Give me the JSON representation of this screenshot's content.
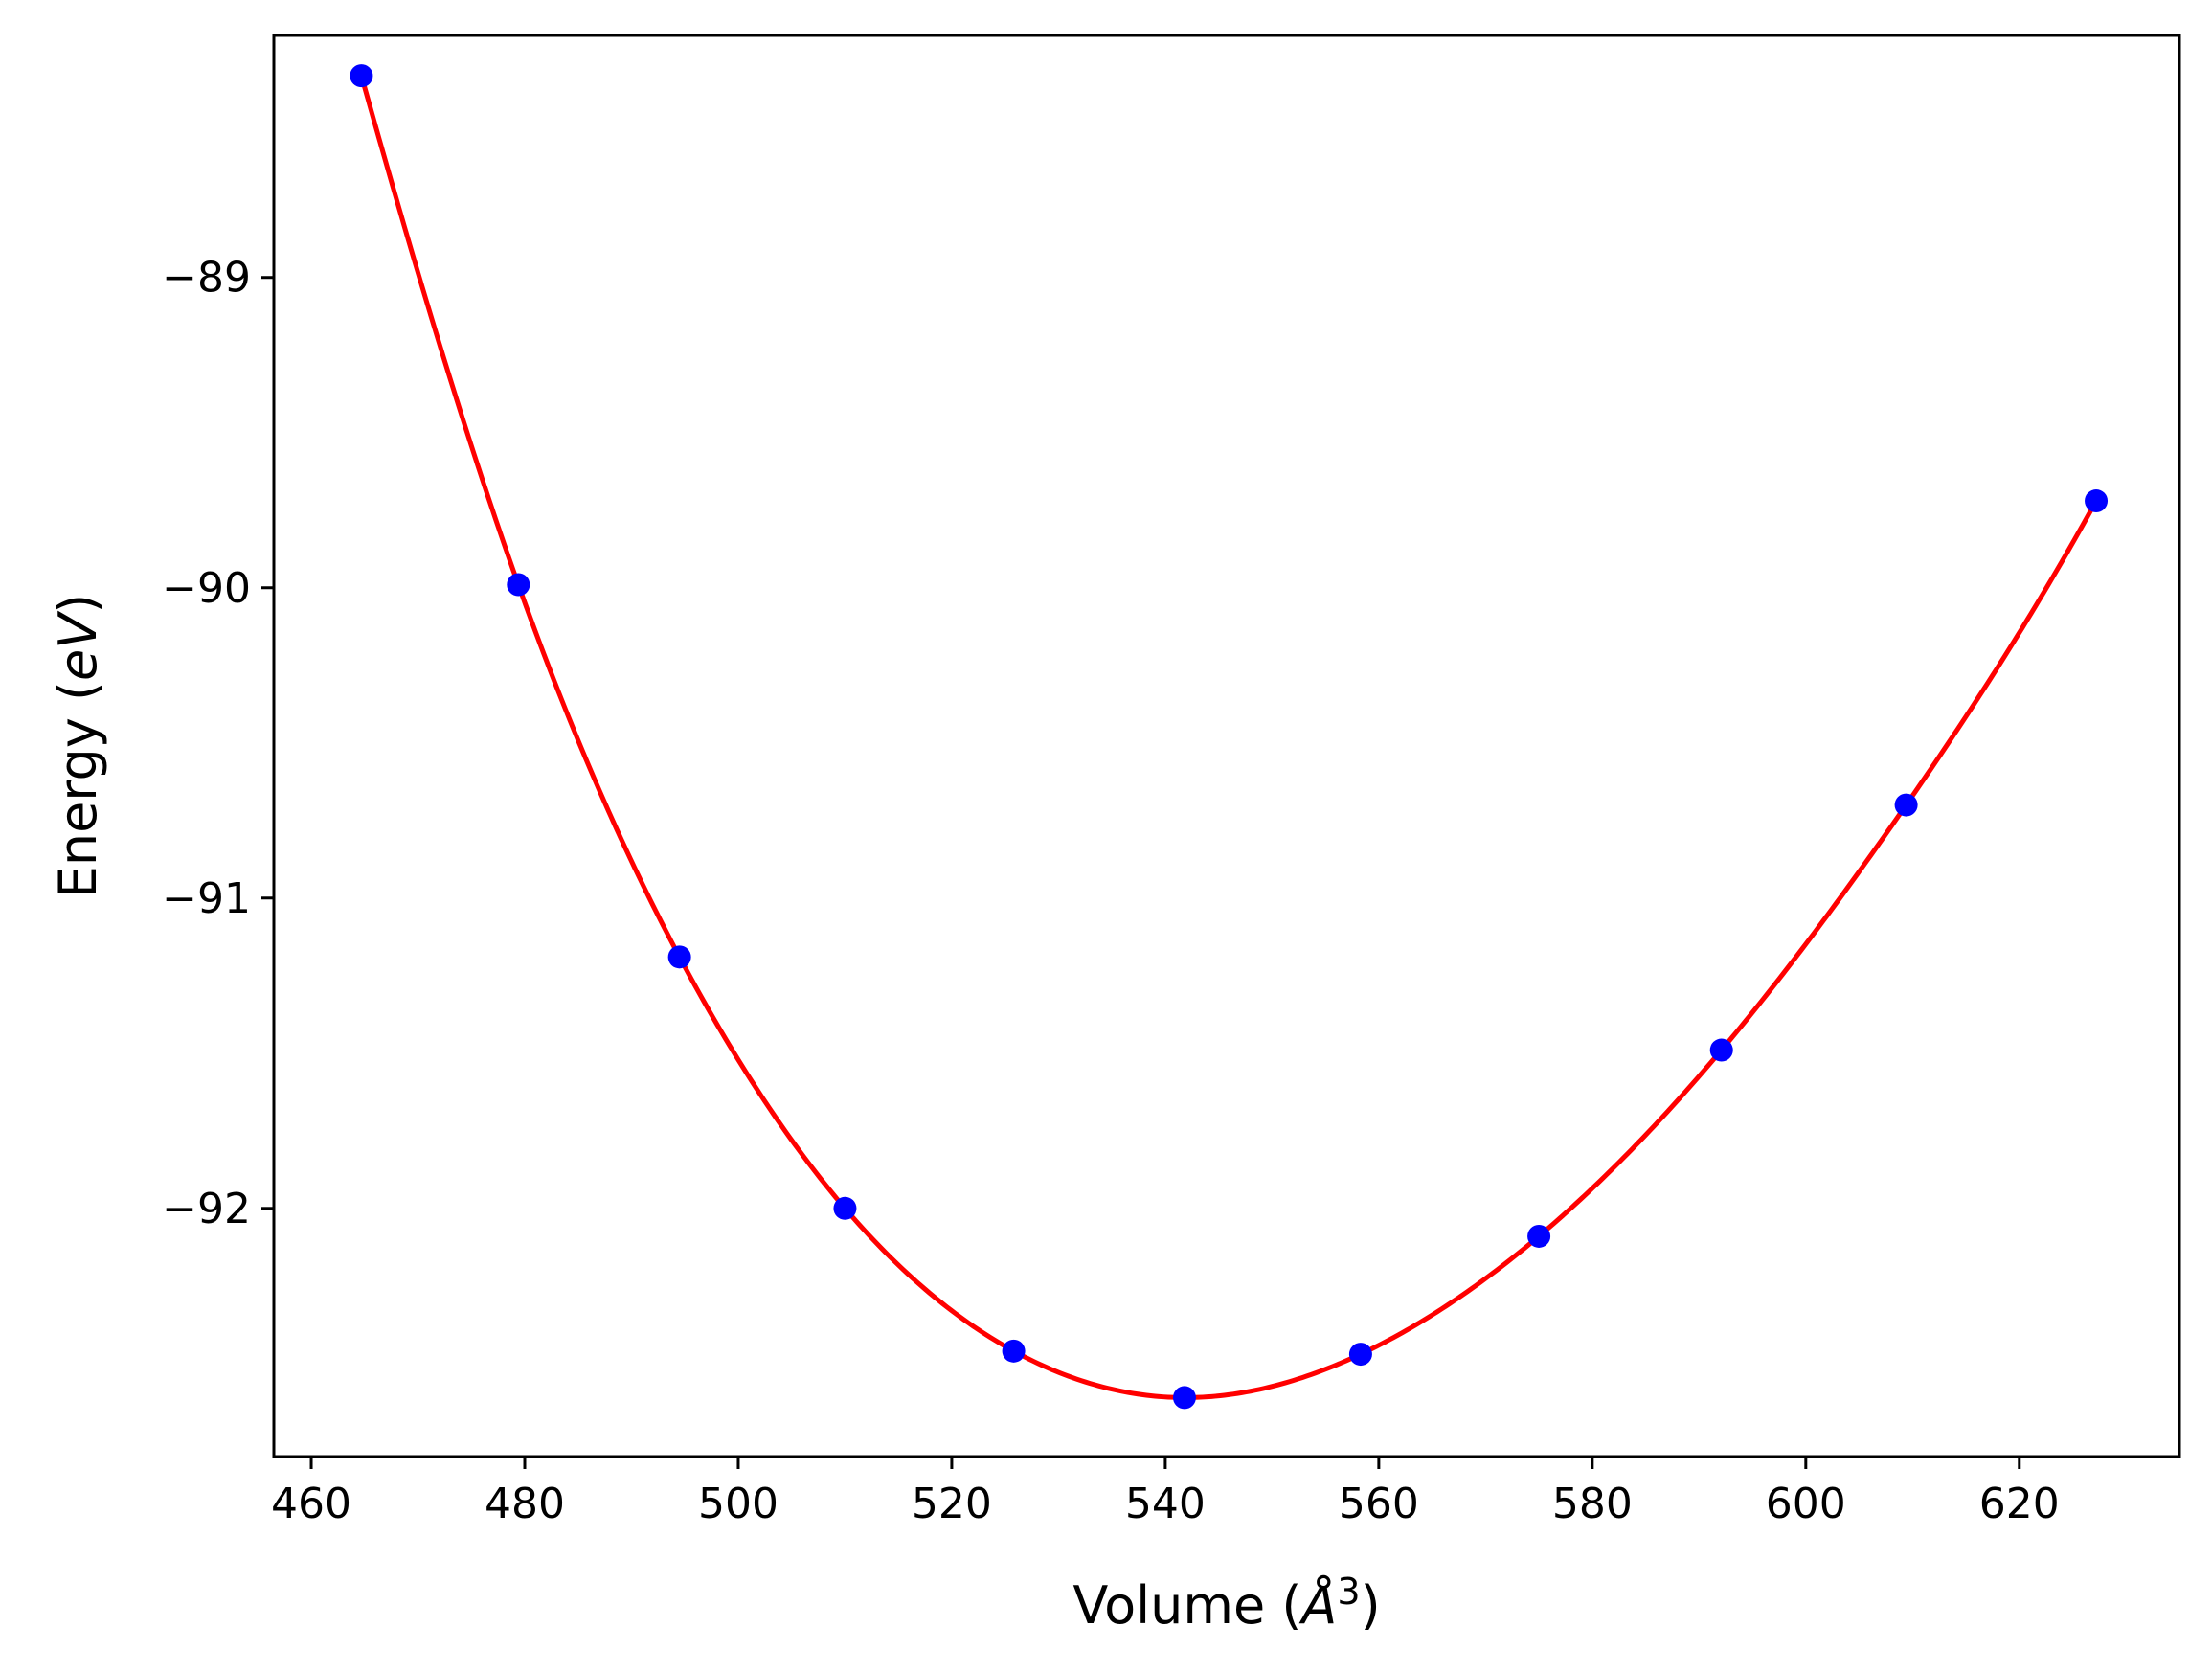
{
  "chart_data": {
    "type": "scatter",
    "xlabel": "Volume (",
    "xlabel_symbol": "Å",
    "xlabel_sup": "3",
    "xlabel_close": ")",
    "ylabel": "Energy (",
    "ylabel_unit": "eV",
    "ylabel_close": ")",
    "xlim": [
      456.5,
      635.0
    ],
    "ylim": [
      -92.8,
      -88.22
    ],
    "xticks": [
      460,
      480,
      500,
      520,
      540,
      560,
      580,
      600,
      620
    ],
    "xtick_labels": [
      "460",
      "480",
      "500",
      "520",
      "540",
      "560",
      "580",
      "600",
      "620"
    ],
    "yticks": [
      -89,
      -90,
      -91,
      -92
    ],
    "ytick_labels": [
      "−89",
      "−90",
      "−91",
      "−92"
    ],
    "grid": false,
    "series": [
      {
        "kind": "points",
        "color": "#0000ff",
        "x": [
          464.7,
          479.4,
          494.5,
          510.0,
          525.8,
          541.8,
          558.3,
          575.0,
          592.1,
          609.4,
          627.2
        ],
        "y": [
          -88.35,
          -89.99,
          -91.19,
          -92.0,
          -92.46,
          -92.61,
          -92.47,
          -92.09,
          -91.49,
          -90.7,
          -89.72
        ]
      },
      {
        "kind": "fit-curve",
        "color": "#ff0000"
      }
    ]
  }
}
